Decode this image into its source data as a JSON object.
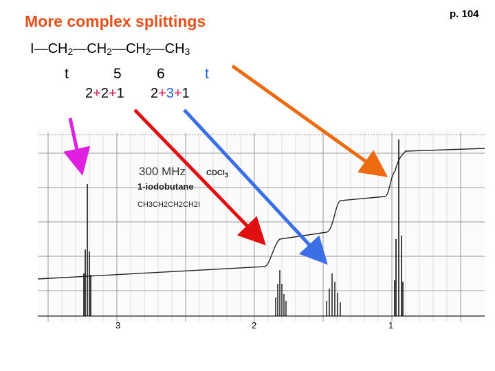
{
  "title": "More complex splittings",
  "page_number": "p. 104",
  "formula": {
    "i": "I",
    "ch2": "CH",
    "ch3": "CH",
    "sub2": "2",
    "sub3": "3",
    "bond": "—"
  },
  "multiplicities": {
    "t1": "t",
    "m5": "5",
    "m6": "6",
    "t2": "t"
  },
  "sums": {
    "s1_a": "2",
    "s1_b": "2",
    "s1_c": "1",
    "s2_a": "2",
    "s2_b": "3",
    "s2_c": "1",
    "plus": "+"
  },
  "spectrum": {
    "field": "300 MHz",
    "solvent": "CDCl",
    "solvent_sub": "3",
    "compound": "1-iodobutane",
    "structure": "CH3CH2CH2CH2I",
    "axis_ticks": [
      "3",
      "2",
      "1"
    ]
  },
  "colors": {
    "title": "#e8501b",
    "magenta_arrow": "#e020e0",
    "red_arrow": "#e01010",
    "blue_arrow": "#3a6fe8",
    "orange_arrow": "#ee6a10"
  }
}
